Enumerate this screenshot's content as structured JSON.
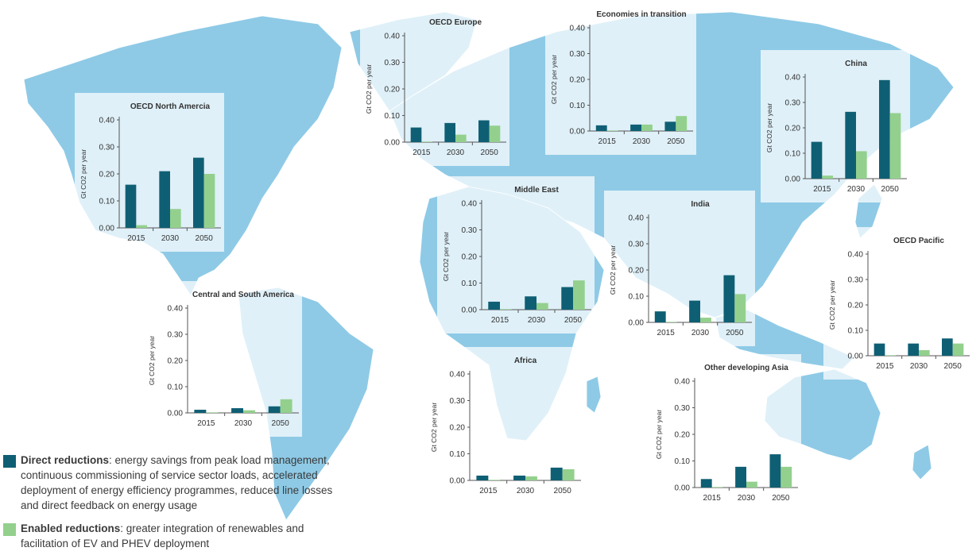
{
  "colors": {
    "ocean": "#ffffff",
    "land": "#8ecae6",
    "land_light": "#dceff8",
    "panel_bg": "#ffffff",
    "direct": "#0f5f74",
    "enabled": "#93d08d",
    "axis": "#555555",
    "text": "#333333"
  },
  "legend": {
    "direct_title": "Direct reductions",
    "direct_text": ": energy savings from peak load management, continuous commissioning of service sector loads, accelerated deployment of energy efficiency programmes, reduced line losses and direct feedback on energy usage",
    "enabled_title": "Enabled reductions",
    "enabled_text": ": greater integration of renewables and facilitation of EV and PHEV deployment"
  },
  "chart_data": [
    {
      "id": "oecd-north-america",
      "type": "bar",
      "title": "OECD North Amercia",
      "ylabel": "Gt CO2 per year",
      "ylim": [
        0,
        0.4
      ],
      "yticks": [
        "0.00",
        "0.10",
        "0.20",
        "0.30",
        "0.40"
      ],
      "categories": [
        "2015",
        "2030",
        "2050"
      ],
      "series": [
        {
          "name": "Direct reductions",
          "values": [
            0.16,
            0.21,
            0.26
          ]
        },
        {
          "name": "Enabled reductions",
          "values": [
            0.01,
            0.07,
            0.2
          ]
        }
      ]
    },
    {
      "id": "oecd-europe",
      "type": "bar",
      "title": "OECD Europe",
      "ylabel": "Gt CO2 per year",
      "ylim": [
        0,
        0.4
      ],
      "yticks": [
        "0.00",
        "0.10",
        "0.20",
        "0.30",
        "0.40"
      ],
      "categories": [
        "2015",
        "2030",
        "2050"
      ],
      "series": [
        {
          "name": "Direct reductions",
          "values": [
            0.055,
            0.072,
            0.082
          ]
        },
        {
          "name": "Enabled reductions",
          "values": [
            0.002,
            0.028,
            0.062
          ]
        }
      ]
    },
    {
      "id": "economies-in-transition",
      "type": "bar",
      "title": "Economies in transition",
      "ylabel": "Gt CO2 per year",
      "ylim": [
        0,
        0.4
      ],
      "yticks": [
        "0.00",
        "0.10",
        "0.20",
        "0.30",
        "0.40"
      ],
      "categories": [
        "2015",
        "2030",
        "2050"
      ],
      "series": [
        {
          "name": "Direct reductions",
          "values": [
            0.022,
            0.025,
            0.036
          ]
        },
        {
          "name": "Enabled reductions",
          "values": [
            0.002,
            0.025,
            0.058
          ]
        }
      ]
    },
    {
      "id": "china",
      "type": "bar",
      "title": "China",
      "ylabel": "Gt CO2 per year",
      "ylim": [
        0,
        0.4
      ],
      "yticks": [
        "0.00",
        "0.10",
        "0.20",
        "0.30",
        "0.40"
      ],
      "categories": [
        "2015",
        "2030",
        "2050"
      ],
      "series": [
        {
          "name": "Direct reductions",
          "values": [
            0.145,
            0.263,
            0.388
          ]
        },
        {
          "name": "Enabled reductions",
          "values": [
            0.012,
            0.108,
            0.258
          ]
        }
      ]
    },
    {
      "id": "middle-east",
      "type": "bar",
      "title": "Middle East",
      "ylabel": "Gt CO2 per year",
      "ylim": [
        0,
        0.4
      ],
      "yticks": [
        "0.00",
        "0.10",
        "0.20",
        "0.30",
        "0.40"
      ],
      "categories": [
        "2015",
        "2030",
        "2050"
      ],
      "series": [
        {
          "name": "Direct reductions",
          "values": [
            0.03,
            0.05,
            0.085
          ]
        },
        {
          "name": "Enabled reductions",
          "values": [
            0.002,
            0.025,
            0.11
          ]
        }
      ]
    },
    {
      "id": "india",
      "type": "bar",
      "title": "India",
      "ylabel": "Gt CO2 per year",
      "ylim": [
        0,
        0.4
      ],
      "yticks": [
        "0.00",
        "0.10",
        "0.20",
        "0.30",
        "0.40"
      ],
      "categories": [
        "2015",
        "2030",
        "2050"
      ],
      "series": [
        {
          "name": "Direct reductions",
          "values": [
            0.042,
            0.083,
            0.18
          ]
        },
        {
          "name": "Enabled reductions",
          "values": [
            0.002,
            0.018,
            0.108
          ]
        }
      ]
    },
    {
      "id": "oecd-pacific",
      "type": "bar",
      "title": "OECD Pacific",
      "ylabel": "Gt CO2 per year",
      "ylim": [
        0,
        0.4
      ],
      "yticks": [
        "0.00",
        "0.10",
        "0.20",
        "0.30",
        "0.40"
      ],
      "categories": [
        "2015",
        "2030",
        "2050"
      ],
      "series": [
        {
          "name": "Direct reductions",
          "values": [
            0.048,
            0.048,
            0.068
          ]
        },
        {
          "name": "Enabled reductions",
          "values": [
            0.002,
            0.022,
            0.048
          ]
        }
      ]
    },
    {
      "id": "central-south-america",
      "type": "bar",
      "title": "Central and South America",
      "ylabel": "Gt CO2 per year",
      "ylim": [
        0,
        0.4
      ],
      "yticks": [
        "0.00",
        "0.10",
        "0.20",
        "0.30",
        "0.40"
      ],
      "categories": [
        "2015",
        "2030",
        "2050"
      ],
      "series": [
        {
          "name": "Direct reductions",
          "values": [
            0.012,
            0.018,
            0.025
          ]
        },
        {
          "name": "Enabled reductions",
          "values": [
            0.002,
            0.01,
            0.052
          ]
        }
      ]
    },
    {
      "id": "africa",
      "type": "bar",
      "title": "Africa",
      "ylabel": "Gt CO2 per year",
      "ylim": [
        0,
        0.4
      ],
      "yticks": [
        "0.00",
        "0.10",
        "0.20",
        "0.30",
        "0.40"
      ],
      "categories": [
        "2015",
        "2030",
        "2050"
      ],
      "series": [
        {
          "name": "Direct reductions",
          "values": [
            0.018,
            0.018,
            0.048
          ]
        },
        {
          "name": "Enabled reductions",
          "values": [
            0.002,
            0.015,
            0.042
          ]
        }
      ]
    },
    {
      "id": "other-developing-asia",
      "type": "bar",
      "title": "Other developing Asia",
      "ylabel": "Gt CO2 per year",
      "ylim": [
        0,
        0.4
      ],
      "yticks": [
        "0.00",
        "0.10",
        "0.20",
        "0.30",
        "0.40"
      ],
      "categories": [
        "2015",
        "2030",
        "2050"
      ],
      "series": [
        {
          "name": "Direct reductions",
          "values": [
            0.032,
            0.078,
            0.125
          ]
        },
        {
          "name": "Enabled reductions",
          "values": [
            0.002,
            0.022,
            0.078
          ]
        }
      ]
    }
  ]
}
